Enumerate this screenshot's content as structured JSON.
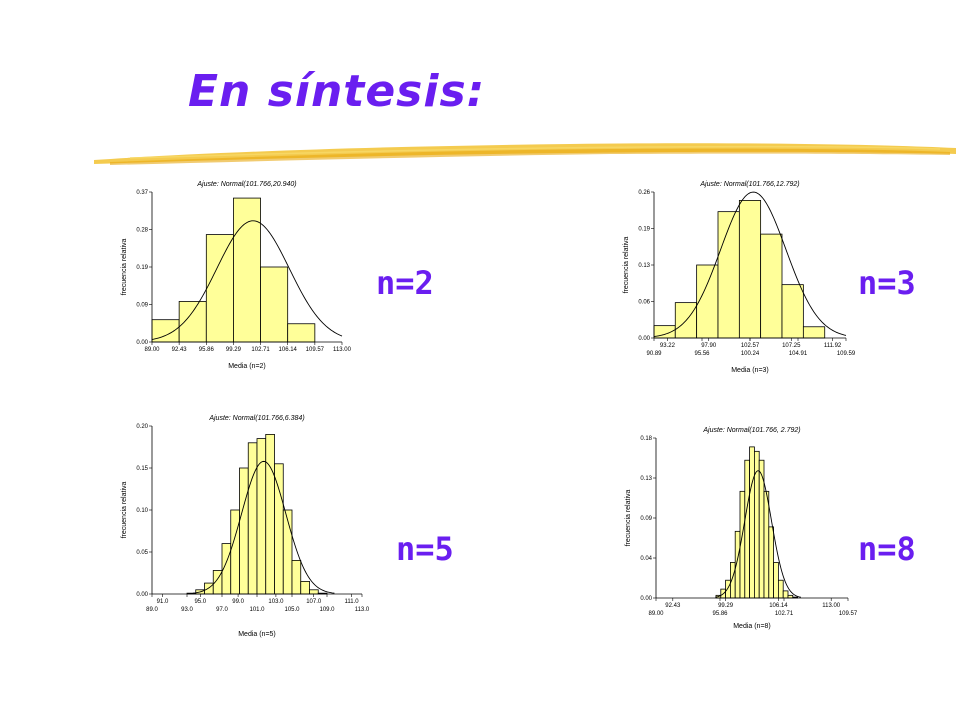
{
  "title": "En síntesis:",
  "colors": {
    "accent": "#6a1ef0",
    "bar": "#ffff99",
    "rule": "#f2c230"
  },
  "chart_data": [
    {
      "type": "bar",
      "sample_label": "n=2",
      "fit_label": "Ajuste: Normal(101.766,20.940)",
      "xlabel": "Media (n=2)",
      "ylabel": "frecuencia relativa",
      "xlim": [
        89.0,
        113.0
      ],
      "ylim": [
        0,
        0.37
      ],
      "yticks": [
        "0.00",
        "0.09",
        "0.19",
        "0.28",
        "0.37"
      ],
      "xticks_top": [],
      "xticks_bottom": [
        "89.00",
        "92.43",
        "95.86",
        "99.29",
        "102.71",
        "106.14",
        "109.57",
        "113.00"
      ],
      "bin_edges": [
        89.0,
        92.43,
        95.86,
        99.29,
        102.71,
        106.14,
        109.57,
        113.0
      ],
      "values": [
        0.055,
        0.1,
        0.265,
        0.355,
        0.185,
        0.045,
        0.0
      ],
      "fit": {
        "mean": 101.766,
        "variance": 20.94
      }
    },
    {
      "type": "bar",
      "sample_label": "n=3",
      "fit_label": "Ajuste: Normal(101.766,12.792)",
      "xlabel": "Media (n=3)",
      "ylabel": "frecuencia relativa",
      "xlim": [
        90.89,
        111.92
      ],
      "ylim": [
        0,
        0.26
      ],
      "yticks": [
        "0.00",
        "0.06",
        "0.13",
        "0.19",
        "0.26"
      ],
      "xticks_top": [
        "93.22",
        "97.90",
        "102.57",
        "107.25",
        "111.92"
      ],
      "xticks_bottom": [
        "90.89",
        "95.56",
        "100.24",
        "104.91",
        "109.59"
      ],
      "bin_edges": [
        90.89,
        93.22,
        95.56,
        97.9,
        100.24,
        102.57,
        104.91,
        107.25,
        109.59,
        111.92
      ],
      "values": [
        0.022,
        0.063,
        0.13,
        0.225,
        0.245,
        0.185,
        0.095,
        0.02,
        0.0
      ],
      "fit": {
        "mean": 101.766,
        "variance": 12.792
      }
    },
    {
      "type": "bar",
      "sample_label": "n=5",
      "fit_label": "Ajuste: Normal(101.766,6.384)",
      "xlabel": "Media (n=5)",
      "ylabel": "frecuencia relativa",
      "xlim": [
        89.0,
        113.0
      ],
      "ylim": [
        0,
        0.2
      ],
      "yticks": [
        "0.00",
        "0.05",
        "0.10",
        "0.15",
        "0.20"
      ],
      "xticks_top": [
        "91.0",
        "95.0",
        "99.0",
        "103.0",
        "107.0",
        "111.0"
      ],
      "xticks_bottom": [
        "89.0",
        "93.0",
        "97.0",
        "101.0",
        "105.0",
        "109.0",
        "113.0"
      ],
      "bin_edges": [
        93.0,
        94.0,
        95.0,
        96.0,
        97.0,
        98.0,
        99.0,
        100.0,
        101.0,
        102.0,
        103.0,
        104.0,
        105.0,
        106.0,
        107.0,
        108.0,
        109.0
      ],
      "values": [
        0.001,
        0.005,
        0.013,
        0.028,
        0.06,
        0.1,
        0.15,
        0.18,
        0.185,
        0.19,
        0.155,
        0.1,
        0.04,
        0.015,
        0.005,
        0.001
      ],
      "fit": {
        "mean": 101.766,
        "variance": 6.384
      }
    },
    {
      "type": "bar",
      "sample_label": "n=8",
      "fit_label": "Ajuste: Normal(101.766, 2.792)",
      "xlabel": "Media (n=8)",
      "ylabel": "frecuencia relativa",
      "xlim": [
        89.0,
        113.0
      ],
      "ylim": [
        0,
        0.18
      ],
      "yticks": [
        "0.00",
        "0.04",
        "0.09",
        "0.13",
        "0.18"
      ],
      "xticks_top": [
        "92.43",
        "99.29",
        "106.14",
        "113.00"
      ],
      "xticks_bottom": [
        "89.00",
        "95.86",
        "102.71",
        "109.57"
      ],
      "bin_edges": [
        96.5,
        97.1,
        97.7,
        98.3,
        98.9,
        99.5,
        100.1,
        100.7,
        101.3,
        101.9,
        102.5,
        103.1,
        103.7,
        104.3,
        104.9,
        105.5,
        106.1,
        106.7
      ],
      "values": [
        0.003,
        0.01,
        0.02,
        0.04,
        0.075,
        0.12,
        0.155,
        0.17,
        0.165,
        0.155,
        0.12,
        0.08,
        0.04,
        0.02,
        0.008,
        0.003,
        0.001
      ],
      "fit": {
        "mean": 101.766,
        "variance": 2.792
      }
    }
  ]
}
